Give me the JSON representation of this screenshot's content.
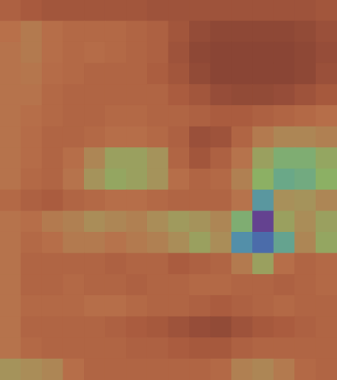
{
  "chart_data": {
    "type": "heatmap",
    "cells": [
      [
        0.28,
        0.25,
        0.22,
        0.22,
        0.22,
        0.22,
        0.22,
        0.2,
        0.2,
        0.2,
        0.2,
        0.2,
        0.2,
        0.2,
        0.2,
        0.22
      ],
      [
        0.35,
        0.38,
        0.34,
        0.32,
        0.32,
        0.32,
        0.3,
        0.28,
        0.22,
        0.15,
        0.12,
        0.12,
        0.12,
        0.12,
        0.14,
        0.18
      ],
      [
        0.36,
        0.38,
        0.34,
        0.32,
        0.33,
        0.32,
        0.3,
        0.28,
        0.2,
        0.12,
        0.1,
        0.1,
        0.1,
        0.1,
        0.12,
        0.16
      ],
      [
        0.36,
        0.37,
        0.33,
        0.32,
        0.3,
        0.3,
        0.3,
        0.27,
        0.22,
        0.14,
        0.1,
        0.1,
        0.1,
        0.1,
        0.12,
        0.18
      ],
      [
        0.36,
        0.36,
        0.32,
        0.3,
        0.3,
        0.3,
        0.3,
        0.3,
        0.26,
        0.22,
        0.16,
        0.14,
        0.14,
        0.16,
        0.2,
        0.24
      ],
      [
        0.36,
        0.34,
        0.32,
        0.3,
        0.3,
        0.32,
        0.32,
        0.3,
        0.3,
        0.28,
        0.26,
        0.26,
        0.28,
        0.3,
        0.32,
        0.34
      ],
      [
        0.36,
        0.33,
        0.3,
        0.3,
        0.32,
        0.34,
        0.34,
        0.32,
        0.28,
        0.18,
        0.2,
        0.3,
        0.38,
        0.42,
        0.42,
        0.4
      ],
      [
        0.36,
        0.33,
        0.3,
        0.34,
        0.42,
        0.5,
        0.5,
        0.46,
        0.3,
        0.22,
        0.28,
        0.36,
        0.5,
        0.6,
        0.6,
        0.52
      ],
      [
        0.36,
        0.32,
        0.3,
        0.36,
        0.46,
        0.52,
        0.5,
        0.46,
        0.34,
        0.3,
        0.32,
        0.4,
        0.55,
        0.68,
        0.65,
        0.55
      ],
      [
        0.32,
        0.28,
        0.26,
        0.3,
        0.32,
        0.34,
        0.34,
        0.32,
        0.3,
        0.3,
        0.3,
        0.36,
        0.75,
        0.45,
        0.46,
        0.42
      ],
      [
        0.36,
        0.34,
        0.38,
        0.4,
        0.44,
        0.42,
        0.4,
        0.44,
        0.48,
        0.46,
        0.42,
        0.6,
        0.98,
        0.5,
        0.44,
        0.5
      ],
      [
        0.36,
        0.32,
        0.34,
        0.38,
        0.38,
        0.36,
        0.38,
        0.4,
        0.44,
        0.5,
        0.44,
        0.78,
        0.88,
        0.7,
        0.42,
        0.52
      ],
      [
        0.36,
        0.3,
        0.3,
        0.3,
        0.3,
        0.28,
        0.3,
        0.3,
        0.26,
        0.28,
        0.3,
        0.38,
        0.5,
        0.34,
        0.3,
        0.32
      ],
      [
        0.36,
        0.3,
        0.3,
        0.32,
        0.3,
        0.3,
        0.28,
        0.3,
        0.3,
        0.32,
        0.32,
        0.3,
        0.3,
        0.28,
        0.3,
        0.32
      ],
      [
        0.36,
        0.32,
        0.32,
        0.32,
        0.34,
        0.34,
        0.32,
        0.3,
        0.3,
        0.28,
        0.26,
        0.28,
        0.3,
        0.32,
        0.3,
        0.3
      ],
      [
        0.36,
        0.3,
        0.3,
        0.3,
        0.3,
        0.28,
        0.26,
        0.24,
        0.2,
        0.16,
        0.14,
        0.2,
        0.24,
        0.26,
        0.28,
        0.3
      ],
      [
        0.36,
        0.32,
        0.3,
        0.3,
        0.3,
        0.3,
        0.28,
        0.28,
        0.26,
        0.24,
        0.24,
        0.28,
        0.3,
        0.3,
        0.3,
        0.3
      ],
      [
        0.46,
        0.44,
        0.42,
        0.34,
        0.3,
        0.3,
        0.3,
        0.3,
        0.3,
        0.3,
        0.32,
        0.4,
        0.42,
        0.38,
        0.32,
        0.3
      ]
    ],
    "zlim": [
      0,
      1
    ],
    "xlim": [
      -0.5,
      15.5
    ],
    "ylim": [
      -0.5,
      17.5
    ],
    "tick_labels": false,
    "grid": false
  }
}
